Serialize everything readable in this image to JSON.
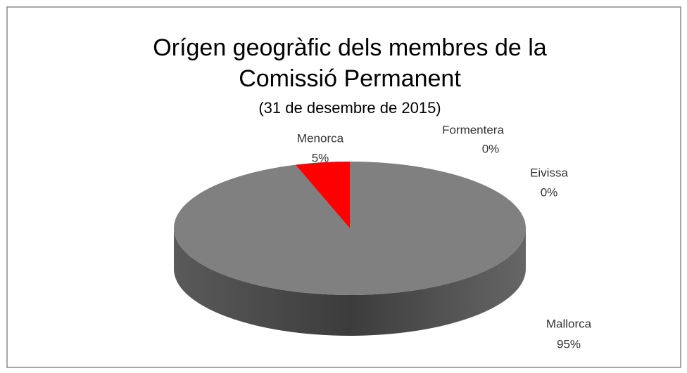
{
  "chart_data": {
    "type": "pie",
    "title": [
      "Orígen geogràfic dels membres de la",
      "Comissió Permanent"
    ],
    "subtitle": "(31 de desembre de 2015)",
    "categories": [
      "Mallorca",
      "Menorca",
      "Formentera",
      "Eivissa"
    ],
    "values": [
      95,
      5,
      0,
      0
    ],
    "value_labels": [
      "95%",
      "5%",
      "0%",
      "0%"
    ],
    "colors": [
      "#808080",
      "#ff0000",
      "#4f81bd",
      "#9bbb59"
    ]
  }
}
